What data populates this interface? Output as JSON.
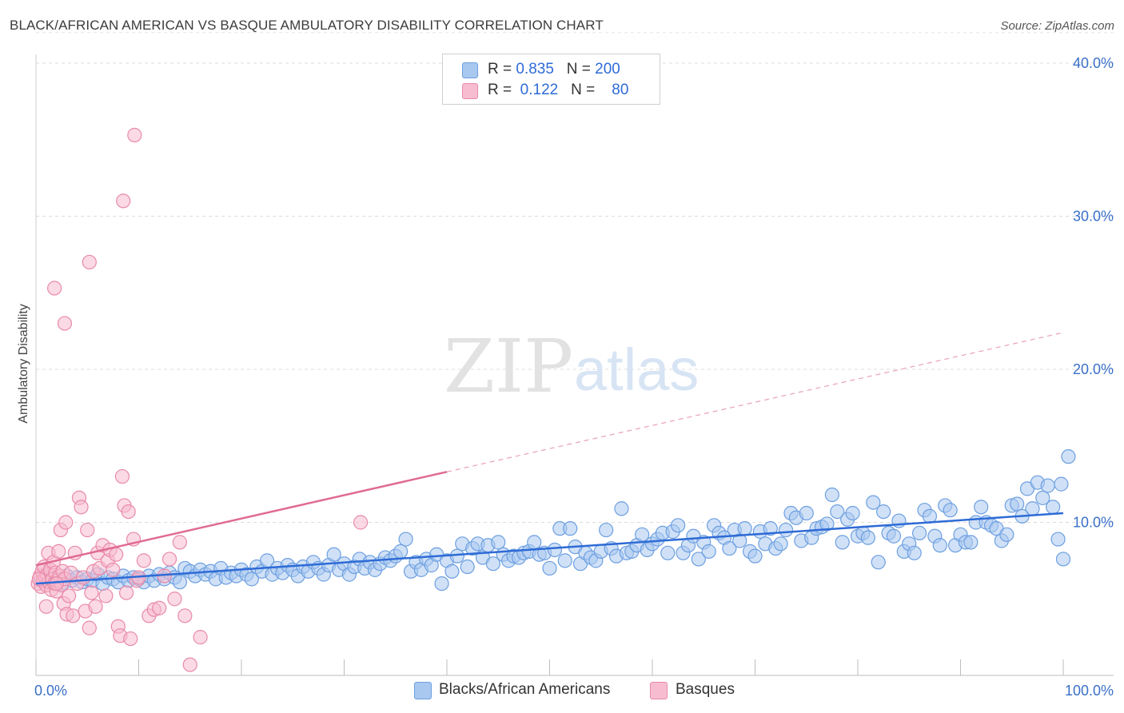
{
  "title": "BLACK/AFRICAN AMERICAN VS BASQUE AMBULATORY DISABILITY CORRELATION CHART",
  "source": "Source: ZipAtlas.com",
  "watermark": {
    "zip": "ZIP",
    "atlas": "atlas"
  },
  "legend": {
    "rows": [
      {
        "r_label": "R =",
        "r_value": "0.835",
        "n_label": "N =",
        "n_value": "200",
        "color": "#a9c8f0",
        "border": "#6d9fe0"
      },
      {
        "r_label": "R =",
        "r_value": "0.122",
        "n_label": "N =",
        "n_value": "80",
        "color": "#f7bcd0",
        "border": "#e88aa8"
      }
    ]
  },
  "chart_data": {
    "type": "scatter",
    "title": "BLACK/AFRICAN AMERICAN VS BASQUE AMBULATORY DISABILITY CORRELATION CHART",
    "xlabel": "",
    "ylabel": "Ambulatory Disability",
    "xlim": [
      0,
      100
    ],
    "ylim": [
      0,
      42
    ],
    "x_tick_labels": [
      "0.0%",
      "100.0%"
    ],
    "y_ticks": [
      10,
      20,
      30,
      40
    ],
    "y_tick_labels": [
      "10.0%",
      "20.0%",
      "30.0%",
      "40.0%"
    ],
    "grid": "horizontal dashed",
    "series": [
      {
        "name": "Blacks/African Americans",
        "color": "#6d9fe0",
        "fill": "#a9c8f0",
        "trend": {
          "x0": 0,
          "y0": 6.0,
          "x1": 100,
          "y1": 10.6,
          "style": "solid",
          "color": "#2e6bd6"
        },
        "points": [
          [
            0.5,
            6.2
          ],
          [
            1.0,
            6.4
          ],
          [
            1.5,
            6.1
          ],
          [
            2.0,
            6.3
          ],
          [
            2.5,
            6.0
          ],
          [
            3.0,
            6.5
          ],
          [
            3.5,
            6.2
          ],
          [
            4.0,
            6.4
          ],
          [
            4.5,
            6.1
          ],
          [
            5.0,
            6.3
          ],
          [
            5.5,
            6.2
          ],
          [
            6.0,
            6.6
          ],
          [
            6.5,
            6.0
          ],
          [
            7.0,
            6.4
          ],
          [
            7.5,
            6.3
          ],
          [
            8.0,
            6.1
          ],
          [
            8.5,
            6.5
          ],
          [
            9.0,
            6.2
          ],
          [
            9.5,
            6.4
          ],
          [
            10.0,
            6.3
          ],
          [
            10.5,
            6.1
          ],
          [
            11.0,
            6.5
          ],
          [
            11.5,
            6.2
          ],
          [
            12.0,
            6.6
          ],
          [
            12.5,
            6.3
          ],
          [
            13.0,
            6.7
          ],
          [
            13.5,
            6.4
          ],
          [
            14.0,
            6.1
          ],
          [
            14.5,
            7.0
          ],
          [
            15.0,
            6.8
          ],
          [
            15.5,
            6.5
          ],
          [
            16.0,
            6.9
          ],
          [
            16.5,
            6.6
          ],
          [
            17.0,
            6.8
          ],
          [
            17.5,
            6.3
          ],
          [
            18.0,
            7.0
          ],
          [
            18.5,
            6.4
          ],
          [
            19.0,
            6.7
          ],
          [
            19.5,
            6.5
          ],
          [
            20.0,
            6.9
          ],
          [
            20.5,
            6.6
          ],
          [
            21.0,
            6.3
          ],
          [
            21.5,
            7.1
          ],
          [
            22.0,
            6.8
          ],
          [
            22.5,
            7.5
          ],
          [
            23.0,
            6.6
          ],
          [
            23.5,
            7.0
          ],
          [
            24.0,
            6.7
          ],
          [
            24.5,
            7.2
          ],
          [
            25.0,
            6.9
          ],
          [
            25.5,
            6.5
          ],
          [
            26.0,
            7.1
          ],
          [
            26.5,
            6.8
          ],
          [
            27.0,
            7.4
          ],
          [
            27.5,
            7.0
          ],
          [
            28.0,
            6.6
          ],
          [
            28.5,
            7.2
          ],
          [
            29.0,
            7.9
          ],
          [
            29.5,
            6.9
          ],
          [
            30.0,
            7.3
          ],
          [
            30.5,
            6.6
          ],
          [
            31.0,
            7.1
          ],
          [
            31.5,
            7.6
          ],
          [
            32.0,
            7.0
          ],
          [
            32.5,
            7.4
          ],
          [
            33.0,
            6.9
          ],
          [
            33.5,
            7.3
          ],
          [
            34.0,
            7.7
          ],
          [
            34.5,
            7.5
          ],
          [
            35.0,
            7.8
          ],
          [
            35.5,
            8.1
          ],
          [
            36.0,
            8.9
          ],
          [
            36.5,
            6.8
          ],
          [
            37.0,
            7.4
          ],
          [
            37.5,
            6.9
          ],
          [
            38.0,
            7.6
          ],
          [
            38.5,
            7.2
          ],
          [
            39.0,
            7.9
          ],
          [
            39.5,
            6.0
          ],
          [
            40.0,
            7.5
          ],
          [
            40.5,
            6.8
          ],
          [
            41.0,
            7.8
          ],
          [
            41.5,
            8.6
          ],
          [
            42.0,
            7.1
          ],
          [
            42.5,
            8.3
          ],
          [
            43.0,
            8.6
          ],
          [
            43.5,
            7.7
          ],
          [
            44.0,
            8.5
          ],
          [
            44.5,
            7.3
          ],
          [
            45.0,
            8.7
          ],
          [
            45.5,
            7.9
          ],
          [
            46.0,
            7.5
          ],
          [
            46.5,
            7.8
          ],
          [
            47.0,
            7.7
          ],
          [
            47.5,
            8.0
          ],
          [
            48.0,
            8.1
          ],
          [
            48.5,
            8.7
          ],
          [
            49.0,
            7.9
          ],
          [
            49.5,
            8.0
          ],
          [
            50.0,
            7.0
          ],
          [
            50.5,
            8.2
          ],
          [
            51.0,
            9.6
          ],
          [
            51.5,
            7.5
          ],
          [
            52.0,
            9.6
          ],
          [
            52.5,
            8.4
          ],
          [
            53.0,
            7.3
          ],
          [
            53.5,
            8.0
          ],
          [
            54.0,
            7.7
          ],
          [
            54.5,
            7.5
          ],
          [
            55.0,
            8.1
          ],
          [
            55.5,
            9.5
          ],
          [
            56.0,
            8.3
          ],
          [
            56.5,
            7.8
          ],
          [
            57.0,
            10.9
          ],
          [
            57.5,
            8.0
          ],
          [
            58.0,
            8.1
          ],
          [
            58.5,
            8.5
          ],
          [
            59.0,
            9.2
          ],
          [
            59.5,
            8.2
          ],
          [
            60.0,
            8.6
          ],
          [
            60.5,
            8.9
          ],
          [
            61.0,
            9.3
          ],
          [
            61.5,
            8.0
          ],
          [
            62.0,
            9.4
          ],
          [
            62.5,
            9.8
          ],
          [
            63.0,
            8.0
          ],
          [
            63.5,
            8.5
          ],
          [
            64.0,
            9.1
          ],
          [
            64.5,
            7.6
          ],
          [
            65.0,
            8.7
          ],
          [
            65.5,
            8.1
          ],
          [
            66.0,
            9.8
          ],
          [
            66.5,
            9.3
          ],
          [
            67.0,
            9.0
          ],
          [
            67.5,
            8.3
          ],
          [
            68.0,
            9.5
          ],
          [
            68.5,
            8.8
          ],
          [
            69.0,
            9.6
          ],
          [
            69.5,
            8.1
          ],
          [
            70.0,
            7.8
          ],
          [
            70.5,
            9.4
          ],
          [
            71.0,
            8.6
          ],
          [
            71.5,
            9.6
          ],
          [
            72.0,
            8.3
          ],
          [
            72.5,
            8.6
          ],
          [
            73.0,
            9.5
          ],
          [
            73.5,
            10.6
          ],
          [
            74.0,
            10.3
          ],
          [
            74.5,
            8.8
          ],
          [
            75.0,
            10.6
          ],
          [
            75.5,
            9.0
          ],
          [
            76.0,
            9.6
          ],
          [
            76.5,
            9.7
          ],
          [
            77.0,
            9.9
          ],
          [
            77.5,
            11.8
          ],
          [
            78.0,
            10.7
          ],
          [
            78.5,
            8.7
          ],
          [
            79.0,
            10.2
          ],
          [
            79.5,
            10.6
          ],
          [
            80.0,
            9.1
          ],
          [
            80.5,
            9.3
          ],
          [
            81.0,
            9.0
          ],
          [
            81.5,
            11.3
          ],
          [
            82.0,
            7.4
          ],
          [
            82.5,
            10.7
          ],
          [
            83.0,
            9.3
          ],
          [
            83.5,
            9.1
          ],
          [
            84.0,
            10.1
          ],
          [
            84.5,
            8.1
          ],
          [
            85.0,
            8.6
          ],
          [
            85.5,
            8.0
          ],
          [
            86.0,
            9.3
          ],
          [
            86.5,
            10.8
          ],
          [
            87.0,
            10.4
          ],
          [
            87.5,
            9.1
          ],
          [
            88.0,
            8.5
          ],
          [
            88.5,
            11.1
          ],
          [
            89.0,
            10.8
          ],
          [
            89.5,
            8.5
          ],
          [
            90.0,
            9.2
          ],
          [
            90.5,
            8.7
          ],
          [
            91.0,
            8.7
          ],
          [
            91.5,
            10.0
          ],
          [
            92.0,
            11.0
          ],
          [
            92.5,
            10.0
          ],
          [
            93.0,
            9.8
          ],
          [
            93.5,
            9.6
          ],
          [
            94.0,
            8.8
          ],
          [
            94.5,
            9.2
          ],
          [
            95.0,
            11.1
          ],
          [
            95.5,
            11.2
          ],
          [
            96.0,
            10.4
          ],
          [
            96.5,
            12.2
          ],
          [
            97.0,
            10.9
          ],
          [
            97.5,
            12.6
          ],
          [
            98.0,
            11.6
          ],
          [
            98.5,
            12.4
          ],
          [
            99.0,
            11.0
          ],
          [
            99.5,
            8.9
          ],
          [
            100.0,
            7.6
          ],
          [
            100.5,
            14.3
          ],
          [
            99.8,
            12.5
          ]
        ]
      },
      {
        "name": "Basques",
        "color": "#e88aa8",
        "fill": "#f7bcd0",
        "trend": {
          "x0": 0,
          "y0": 7.2,
          "x1": 40,
          "y1": 13.3,
          "style": "solid",
          "dash_to": {
            "x": 100,
            "y": 22.4
          },
          "color": "#e06a92"
        },
        "points": [
          [
            0.2,
            6.0
          ],
          [
            0.4,
            6.5
          ],
          [
            0.5,
            5.8
          ],
          [
            0.6,
            6.8
          ],
          [
            0.7,
            6.2
          ],
          [
            0.8,
            7.1
          ],
          [
            0.9,
            6.4
          ],
          [
            1.0,
            5.9
          ],
          [
            1.1,
            6.6
          ],
          [
            1.2,
            8.0
          ],
          [
            1.3,
            6.1
          ],
          [
            1.4,
            6.9
          ],
          [
            1.5,
            5.6
          ],
          [
            1.6,
            6.3
          ],
          [
            1.7,
            7.4
          ],
          [
            1.8,
            6.0
          ],
          [
            1.9,
            6.7
          ],
          [
            2.0,
            5.5
          ],
          [
            2.1,
            6.2
          ],
          [
            2.2,
            8.1
          ],
          [
            2.3,
            6.5
          ],
          [
            2.4,
            9.5
          ],
          [
            2.5,
            5.9
          ],
          [
            2.6,
            6.8
          ],
          [
            2.7,
            4.7
          ],
          [
            2.8,
            6.3
          ],
          [
            2.9,
            10.0
          ],
          [
            3.0,
            4.0
          ],
          [
            3.2,
            5.2
          ],
          [
            3.4,
            6.7
          ],
          [
            3.6,
            3.9
          ],
          [
            3.8,
            8.0
          ],
          [
            4.0,
            6.0
          ],
          [
            4.2,
            11.6
          ],
          [
            4.4,
            11.0
          ],
          [
            4.6,
            6.4
          ],
          [
            4.8,
            4.2
          ],
          [
            5.0,
            9.5
          ],
          [
            5.2,
            3.1
          ],
          [
            5.4,
            5.4
          ],
          [
            5.6,
            6.8
          ],
          [
            5.8,
            4.5
          ],
          [
            6.0,
            8.0
          ],
          [
            6.2,
            7.0
          ],
          [
            6.5,
            8.5
          ],
          [
            6.8,
            5.2
          ],
          [
            7.0,
            7.5
          ],
          [
            7.2,
            8.2
          ],
          [
            7.5,
            6.9
          ],
          [
            7.8,
            7.9
          ],
          [
            8.0,
            3.2
          ],
          [
            8.2,
            2.6
          ],
          [
            8.4,
            13.0
          ],
          [
            8.6,
            11.1
          ],
          [
            8.8,
            5.4
          ],
          [
            9.0,
            10.7
          ],
          [
            9.2,
            2.4
          ],
          [
            9.5,
            8.9
          ],
          [
            9.8,
            6.2
          ],
          [
            10.0,
            6.4
          ],
          [
            1.8,
            25.3
          ],
          [
            2.8,
            23.0
          ],
          [
            5.2,
            27.0
          ],
          [
            8.5,
            31.0
          ],
          [
            9.6,
            35.3
          ],
          [
            10.5,
            7.5
          ],
          [
            11.0,
            3.9
          ],
          [
            11.5,
            4.3
          ],
          [
            12.0,
            4.4
          ],
          [
            12.5,
            6.5
          ],
          [
            13.0,
            7.6
          ],
          [
            13.5,
            5.0
          ],
          [
            14.0,
            8.7
          ],
          [
            14.5,
            3.9
          ],
          [
            15.0,
            0.7
          ],
          [
            16.0,
            2.5
          ],
          [
            31.6,
            10.0
          ],
          [
            1.0,
            4.5
          ],
          [
            0.3,
            6.3
          ],
          [
            2.0,
            6.0
          ]
        ]
      }
    ]
  },
  "bottom_legend": {
    "items": [
      {
        "label": "Blacks/African Americans"
      },
      {
        "label": "Basques"
      }
    ]
  }
}
